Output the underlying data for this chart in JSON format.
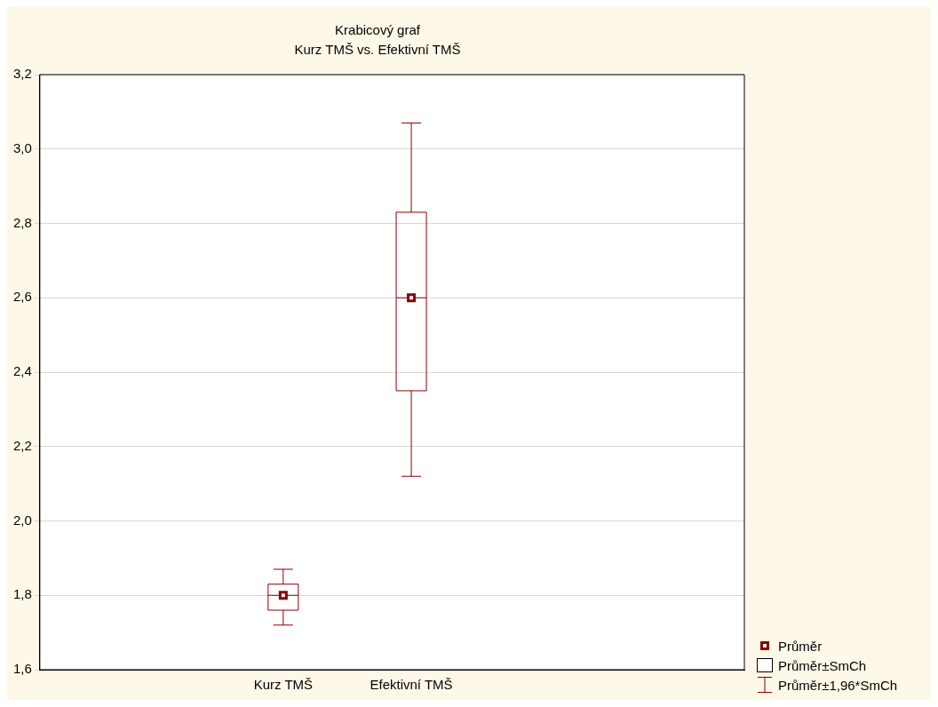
{
  "chart_data": {
    "type": "box",
    "title": "Krabicový graf",
    "subtitle": "Kurz TMŠ vs. Efektivní TMŠ",
    "categories": [
      "Kurz TMŠ",
      "Efektivní TMŠ"
    ],
    "color": "#8b0000",
    "boxes": [
      {
        "low": 1.72,
        "q1": 1.76,
        "median": 1.8,
        "q3": 1.83,
        "high": 1.87,
        "mean": 1.8
      },
      {
        "low": 2.12,
        "q1": 2.35,
        "median": 2.6,
        "q3": 2.83,
        "high": 3.07,
        "mean": 2.6
      }
    ],
    "ylim": [
      1.6,
      3.2
    ],
    "yticks": [
      {
        "value": 1.6,
        "label": "1,6"
      },
      {
        "value": 1.8,
        "label": "1,8"
      },
      {
        "value": 2.0,
        "label": "2,0"
      },
      {
        "value": 2.2,
        "label": "2,2"
      },
      {
        "value": 2.4,
        "label": "2,4"
      },
      {
        "value": 2.6,
        "label": "2,6"
      },
      {
        "value": 2.8,
        "label": "2,8"
      },
      {
        "value": 3.0,
        "label": "3,0"
      },
      {
        "value": 3.2,
        "label": "3,2"
      }
    ],
    "grid": "y",
    "marker": "square",
    "annotations": [
      "Průměr",
      "Průměr±SmCh",
      "Průměr±1,96*SmCh"
    ]
  }
}
